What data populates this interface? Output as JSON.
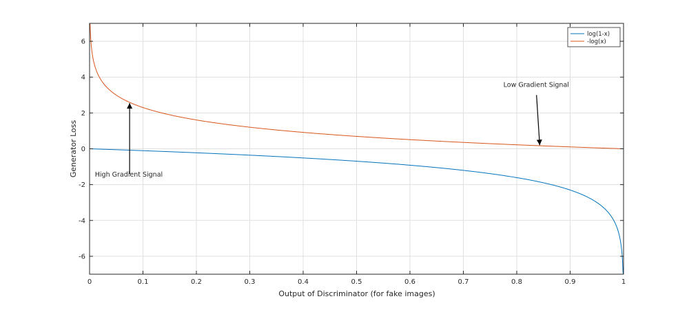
{
  "chart_data": {
    "type": "line",
    "xlabel": "Output of Discriminator (for fake images)",
    "ylabel": "Generator Loss",
    "xlim": [
      0,
      1
    ],
    "ylim": [
      -7,
      7
    ],
    "grid": true,
    "legend_position": "top-right",
    "x_ticks": [
      "0",
      "0.1",
      "0.2",
      "0.3",
      "0.4",
      "0.5",
      "0.6",
      "0.7",
      "0.8",
      "0.9",
      "1"
    ],
    "y_ticks": [
      "-6",
      "-4",
      "-2",
      "0",
      "2",
      "4",
      "6"
    ],
    "series": [
      {
        "name": "log(1-x)",
        "color": "#0072bd",
        "x": [
          0,
          0.05,
          0.1,
          0.15,
          0.2,
          0.25,
          0.3,
          0.35,
          0.4,
          0.45,
          0.5,
          0.55,
          0.6,
          0.65,
          0.7,
          0.75,
          0.8,
          0.85,
          0.9,
          0.92,
          0.94,
          0.96,
          0.97,
          0.98,
          0.99,
          0.995,
          0.998,
          0.999
        ],
        "y": [
          0,
          -0.05,
          -0.11,
          -0.16,
          -0.22,
          -0.29,
          -0.36,
          -0.43,
          -0.51,
          -0.6,
          -0.69,
          -0.8,
          -0.92,
          -1.05,
          -1.2,
          -1.39,
          -1.61,
          -1.9,
          -2.3,
          -2.53,
          -2.81,
          -3.22,
          -3.51,
          -3.91,
          -4.61,
          -5.3,
          -6.21,
          -6.91
        ]
      },
      {
        "name": "-log(x)",
        "color": "#d95319",
        "x": [
          0.001,
          0.002,
          0.005,
          0.01,
          0.02,
          0.03,
          0.04,
          0.06,
          0.08,
          0.1,
          0.15,
          0.2,
          0.25,
          0.3,
          0.35,
          0.4,
          0.45,
          0.5,
          0.55,
          0.6,
          0.65,
          0.7,
          0.75,
          0.8,
          0.85,
          0.9,
          0.95,
          1
        ],
        "y": [
          6.91,
          6.21,
          5.3,
          4.61,
          3.91,
          3.51,
          3.22,
          2.81,
          2.53,
          2.3,
          1.9,
          1.61,
          1.39,
          1.2,
          1.05,
          0.92,
          0.8,
          0.69,
          0.6,
          0.51,
          0.43,
          0.36,
          0.29,
          0.22,
          0.16,
          0.11,
          0.05,
          0
        ]
      }
    ],
    "annotations": [
      {
        "text": "High Gradient Signal",
        "text_x": 0.01,
        "text_y": -1.55,
        "arrow_from": [
          0.075,
          -1.4
        ],
        "arrow_to": [
          0.075,
          2.55
        ]
      },
      {
        "text": "Low Gradient Signal",
        "text_x": 0.775,
        "text_y": 3.45,
        "arrow_from": [
          0.837,
          3.0
        ],
        "arrow_to": [
          0.843,
          0.2
        ]
      }
    ]
  }
}
